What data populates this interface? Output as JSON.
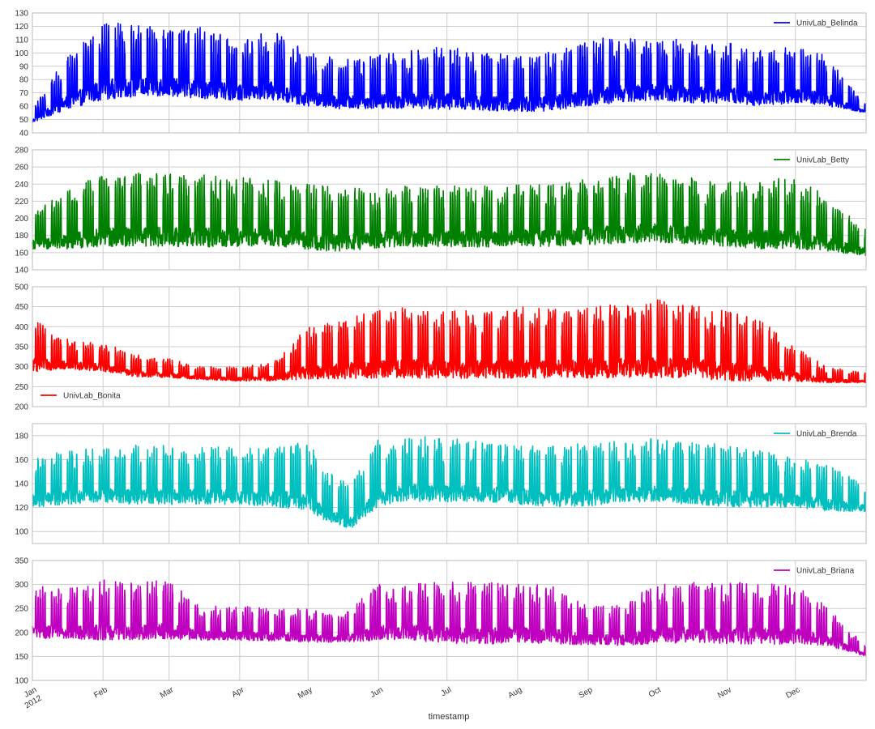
{
  "chart_data": {
    "type": "line",
    "xlabel": "timestamp",
    "x_range": [
      "2012-01-01",
      "2012-12-31"
    ],
    "x_ticks": [
      {
        "date": "2012-01-01",
        "label": "Jan",
        "sublabel": "2012"
      },
      {
        "date": "2012-02-01",
        "label": "Feb"
      },
      {
        "date": "2012-03-01",
        "label": "Mar"
      },
      {
        "date": "2012-04-01",
        "label": "Apr"
      },
      {
        "date": "2012-05-01",
        "label": "May"
      },
      {
        "date": "2012-06-01",
        "label": "Jun"
      },
      {
        "date": "2012-07-01",
        "label": "Jul"
      },
      {
        "date": "2012-08-01",
        "label": "Aug"
      },
      {
        "date": "2012-09-01",
        "label": "Sep"
      },
      {
        "date": "2012-10-01",
        "label": "Oct"
      },
      {
        "date": "2012-11-01",
        "label": "Nov"
      },
      {
        "date": "2012-12-01",
        "label": "Dec"
      }
    ],
    "grid": true,
    "subplots": [
      {
        "series_name": "UnivLab_Belinda",
        "color": "#0000ff",
        "ylim": [
          40,
          130
        ],
        "yticks": [
          40,
          50,
          60,
          70,
          80,
          90,
          100,
          110,
          120,
          130
        ],
        "legend": "top-right",
        "approx_series": {
          "dates": [
            "2012-01-01",
            "2012-01-15",
            "2012-02-01",
            "2012-02-15",
            "2012-03-01",
            "2012-03-15",
            "2012-04-01",
            "2012-04-15",
            "2012-05-01",
            "2012-05-15",
            "2012-06-01",
            "2012-06-15",
            "2012-07-01",
            "2012-07-15",
            "2012-08-01",
            "2012-08-15",
            "2012-09-01",
            "2012-09-15",
            "2012-10-01",
            "2012-10-15",
            "2012-11-01",
            "2012-11-15",
            "2012-12-01",
            "2012-12-15",
            "2012-12-31"
          ],
          "weekday_peak": [
            58,
            95,
            123,
            122,
            118,
            120,
            108,
            118,
            100,
            96,
            100,
            102,
            105,
            100,
            100,
            101,
            110,
            113,
            111,
            110,
            108,
            103,
            105,
            98,
            62
          ],
          "weekend_base": [
            47,
            55,
            62,
            64,
            65,
            63,
            62,
            62,
            58,
            56,
            56,
            56,
            55,
            55,
            53,
            54,
            57,
            60,
            62,
            60,
            60,
            58,
            60,
            58,
            55
          ]
        }
      },
      {
        "series_name": "UnivLab_Betty",
        "color": "#008000",
        "ylim": [
          140,
          280
        ],
        "yticks": [
          140,
          160,
          180,
          200,
          220,
          240,
          260,
          280
        ],
        "legend": "top-right",
        "approx_series": {
          "dates": [
            "2012-01-01",
            "2012-01-15",
            "2012-02-01",
            "2012-02-15",
            "2012-03-01",
            "2012-03-15",
            "2012-04-01",
            "2012-04-15",
            "2012-05-01",
            "2012-05-15",
            "2012-06-01",
            "2012-06-15",
            "2012-07-01",
            "2012-07-15",
            "2012-08-01",
            "2012-08-15",
            "2012-09-01",
            "2012-09-15",
            "2012-10-01",
            "2012-10-15",
            "2012-11-01",
            "2012-11-15",
            "2012-12-01",
            "2012-12-15",
            "2012-12-31"
          ],
          "weekday_peak": [
            205,
            232,
            252,
            254,
            252,
            252,
            248,
            245,
            240,
            236,
            235,
            238,
            240,
            238,
            240,
            242,
            248,
            252,
            256,
            248,
            243,
            245,
            250,
            225,
            190
          ],
          "weekend_base": [
            162,
            160,
            162,
            163,
            163,
            162,
            163,
            163,
            160,
            157,
            162,
            163,
            163,
            162,
            164,
            163,
            165,
            166,
            168,
            166,
            163,
            160,
            160,
            158,
            155
          ]
        }
      },
      {
        "series_name": "UnivLab_Bonita",
        "color": "#ff0000",
        "ylim": [
          200,
          500
        ],
        "yticks": [
          200,
          250,
          300,
          350,
          400,
          450,
          500
        ],
        "legend": "lower-left",
        "approx_series": {
          "dates": [
            "2012-01-01",
            "2012-01-15",
            "2012-02-01",
            "2012-02-15",
            "2012-03-01",
            "2012-03-15",
            "2012-04-01",
            "2012-04-15",
            "2012-05-01",
            "2012-05-15",
            "2012-06-01",
            "2012-06-15",
            "2012-07-01",
            "2012-07-15",
            "2012-08-01",
            "2012-08-15",
            "2012-09-01",
            "2012-09-15",
            "2012-10-01",
            "2012-10-15",
            "2012-11-01",
            "2012-11-15",
            "2012-12-01",
            "2012-12-15",
            "2012-12-31"
          ],
          "weekday_peak": [
            420,
            370,
            360,
            330,
            320,
            300,
            300,
            310,
            400,
            420,
            440,
            450,
            440,
            440,
            450,
            445,
            455,
            460,
            470,
            460,
            440,
            420,
            350,
            300,
            285
          ],
          "weekend_base": [
            280,
            290,
            285,
            272,
            270,
            265,
            262,
            262,
            262,
            262,
            262,
            262,
            262,
            262,
            262,
            262,
            262,
            262,
            262,
            262,
            255,
            255,
            258,
            258,
            258
          ]
        }
      },
      {
        "series_name": "UnivLab_Brenda",
        "color": "#00bfbf",
        "ylim": [
          90,
          190
        ],
        "yticks": [
          100,
          120,
          140,
          160,
          180
        ],
        "legend": "top-right",
        "approx_series": {
          "dates": [
            "2012-01-01",
            "2012-01-15",
            "2012-02-01",
            "2012-02-15",
            "2012-03-01",
            "2012-03-15",
            "2012-04-01",
            "2012-04-15",
            "2012-05-01",
            "2012-05-10",
            "2012-05-20",
            "2012-06-01",
            "2012-06-15",
            "2012-07-01",
            "2012-07-15",
            "2012-08-01",
            "2012-08-15",
            "2012-09-01",
            "2012-09-15",
            "2012-10-01",
            "2012-10-15",
            "2012-11-01",
            "2012-11-15",
            "2012-12-01",
            "2012-12-15",
            "2012-12-31"
          ],
          "weekday_peak": [
            160,
            168,
            170,
            172,
            172,
            172,
            170,
            172,
            175,
            150,
            140,
            178,
            180,
            178,
            176,
            172,
            172,
            174,
            176,
            178,
            176,
            172,
            168,
            162,
            156,
            140
          ],
          "weekend_base": [
            118,
            120,
            122,
            120,
            120,
            120,
            120,
            118,
            115,
            105,
            100,
            118,
            122,
            122,
            122,
            120,
            118,
            118,
            122,
            122,
            120,
            118,
            118,
            118,
            115,
            115
          ]
        }
      },
      {
        "series_name": "UnivLab_Briana",
        "color": "#bf00bf",
        "ylim": [
          100,
          350
        ],
        "yticks": [
          100,
          150,
          200,
          250,
          300,
          350
        ],
        "legend": "top-right",
        "approx_series": {
          "dates": [
            "2012-01-01",
            "2012-01-15",
            "2012-02-01",
            "2012-02-15",
            "2012-03-01",
            "2012-03-15",
            "2012-04-01",
            "2012-04-15",
            "2012-05-01",
            "2012-05-15",
            "2012-06-01",
            "2012-06-15",
            "2012-07-01",
            "2012-07-15",
            "2012-08-01",
            "2012-08-15",
            "2012-09-01",
            "2012-09-15",
            "2012-10-01",
            "2012-10-15",
            "2012-11-01",
            "2012-11-15",
            "2012-12-01",
            "2012-12-15",
            "2012-12-31"
          ],
          "weekday_peak": [
            300,
            290,
            310,
            305,
            310,
            255,
            255,
            250,
            250,
            235,
            300,
            305,
            305,
            305,
            305,
            300,
            255,
            260,
            300,
            305,
            305,
            305,
            300,
            255,
            175
          ],
          "weekend_base": [
            182,
            180,
            178,
            178,
            180,
            180,
            180,
            178,
            176,
            176,
            178,
            178,
            170,
            168,
            172,
            170,
            170,
            168,
            170,
            172,
            170,
            168,
            170,
            168,
            150
          ]
        }
      }
    ]
  }
}
